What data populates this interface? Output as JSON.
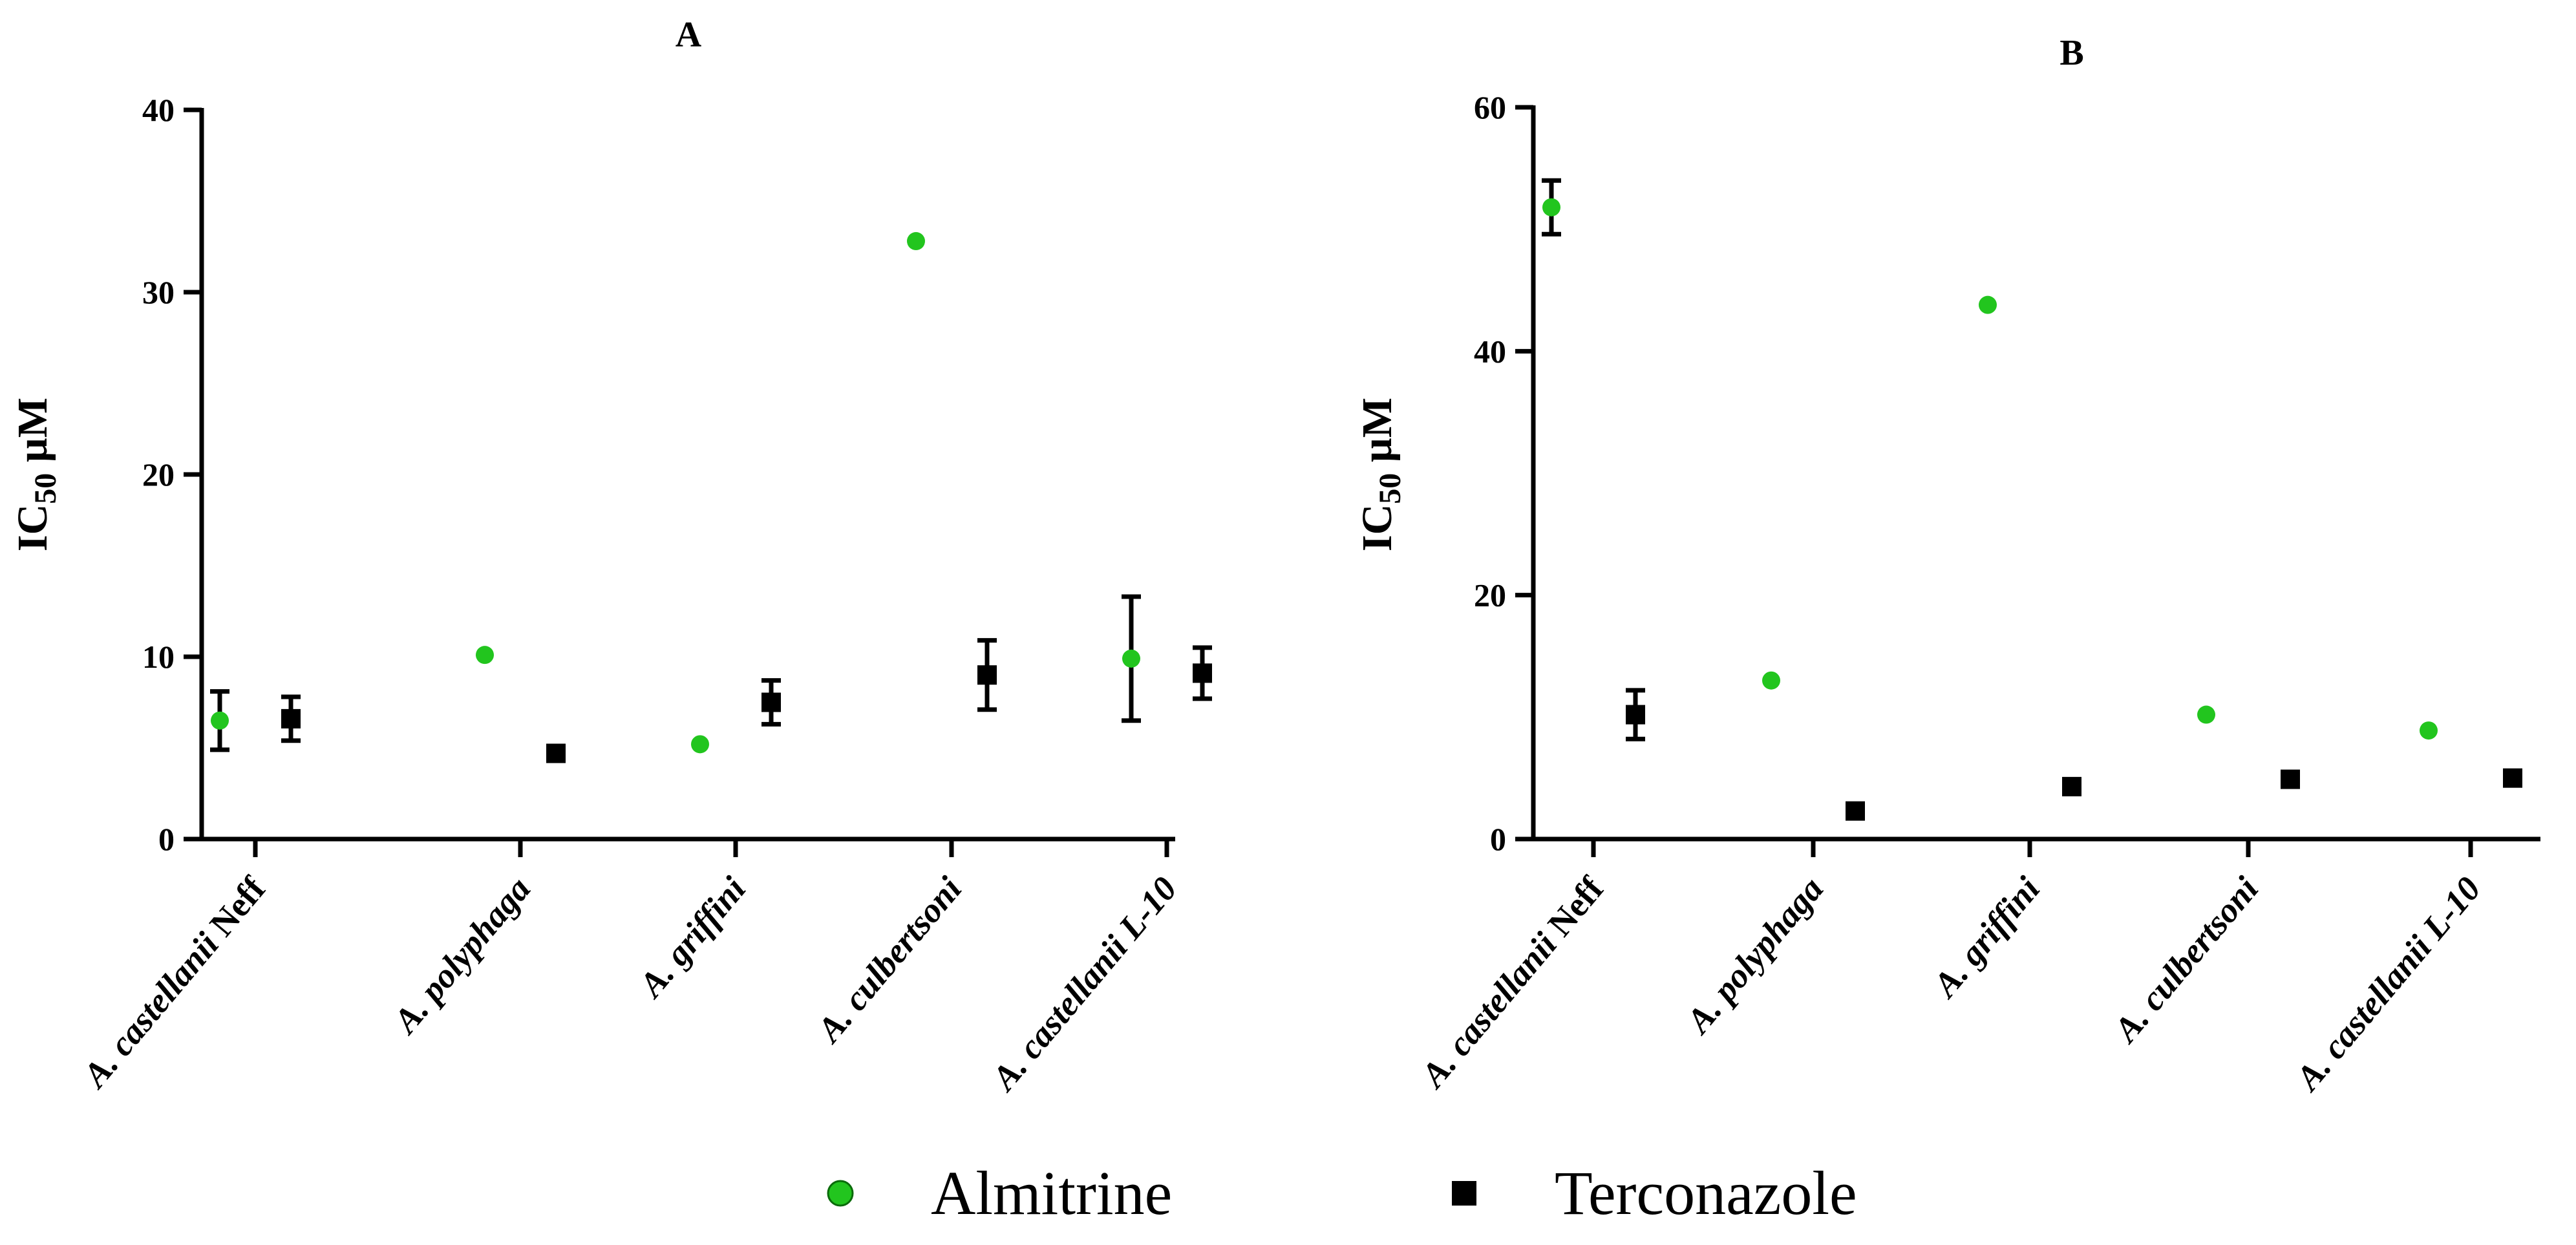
{
  "legend": {
    "items": [
      {
        "label": "Almitrine",
        "color": "#22c51e",
        "marker": "circle"
      },
      {
        "label": "Terconazole",
        "color": "#000000",
        "marker": "square"
      }
    ]
  },
  "chart_data": [
    {
      "type": "scatter",
      "title": "A",
      "ylabel_main": "IC",
      "ylabel_sub": "50",
      "ylabel_unit": " µM",
      "ylim": [
        0,
        40
      ],
      "yticks": [
        0,
        10,
        20,
        30,
        40
      ],
      "categories": [
        {
          "italic": "A. castellanii",
          "normal": " Neff"
        },
        {
          "italic": "A. polyphaga",
          "normal": ""
        },
        {
          "italic": "A. griffini",
          "normal": ""
        },
        {
          "italic": "A. culbertsoni",
          "normal": ""
        },
        {
          "italic": "A. castellanii L-10",
          "normal": ""
        }
      ],
      "series": [
        {
          "name": "Almitrine",
          "color": "#22c51e",
          "marker": "circle",
          "values": [
            6.5,
            10.1,
            5.2,
            32.8,
            9.9
          ],
          "errors": [
            1.6,
            0,
            0,
            0,
            3.4
          ]
        },
        {
          "name": "Terconazole",
          "color": "#000000",
          "marker": "square",
          "values": [
            6.6,
            4.7,
            7.5,
            9.0,
            9.1
          ],
          "errors": [
            1.2,
            0,
            1.2,
            1.9,
            1.4
          ]
        }
      ],
      "grid": false
    },
    {
      "type": "scatter",
      "title": "B",
      "ylabel_main": "IC",
      "ylabel_sub": "50",
      "ylabel_unit": " µM",
      "ylim": [
        0,
        60
      ],
      "yticks": [
        0,
        20,
        40,
        60
      ],
      "categories": [
        {
          "italic": "A. castellanii",
          "normal": " Neff"
        },
        {
          "italic": "A. polyphaga",
          "normal": ""
        },
        {
          "italic": "A. griffini",
          "normal": ""
        },
        {
          "italic": "A. culbertsoni",
          "normal": ""
        },
        {
          "italic": "A. castellanii L-10",
          "normal": ""
        }
      ],
      "series": [
        {
          "name": "Almitrine",
          "color": "#22c51e",
          "marker": "circle",
          "values": [
            51.8,
            13.0,
            43.8,
            10.2,
            8.9
          ],
          "errors": [
            2.2,
            0,
            0,
            0,
            0
          ]
        },
        {
          "name": "Terconazole",
          "color": "#000000",
          "marker": "square",
          "values": [
            10.2,
            2.3,
            4.3,
            4.9,
            5.0
          ],
          "errors": [
            2.0,
            0,
            0,
            0,
            0
          ]
        }
      ],
      "grid": false
    }
  ]
}
